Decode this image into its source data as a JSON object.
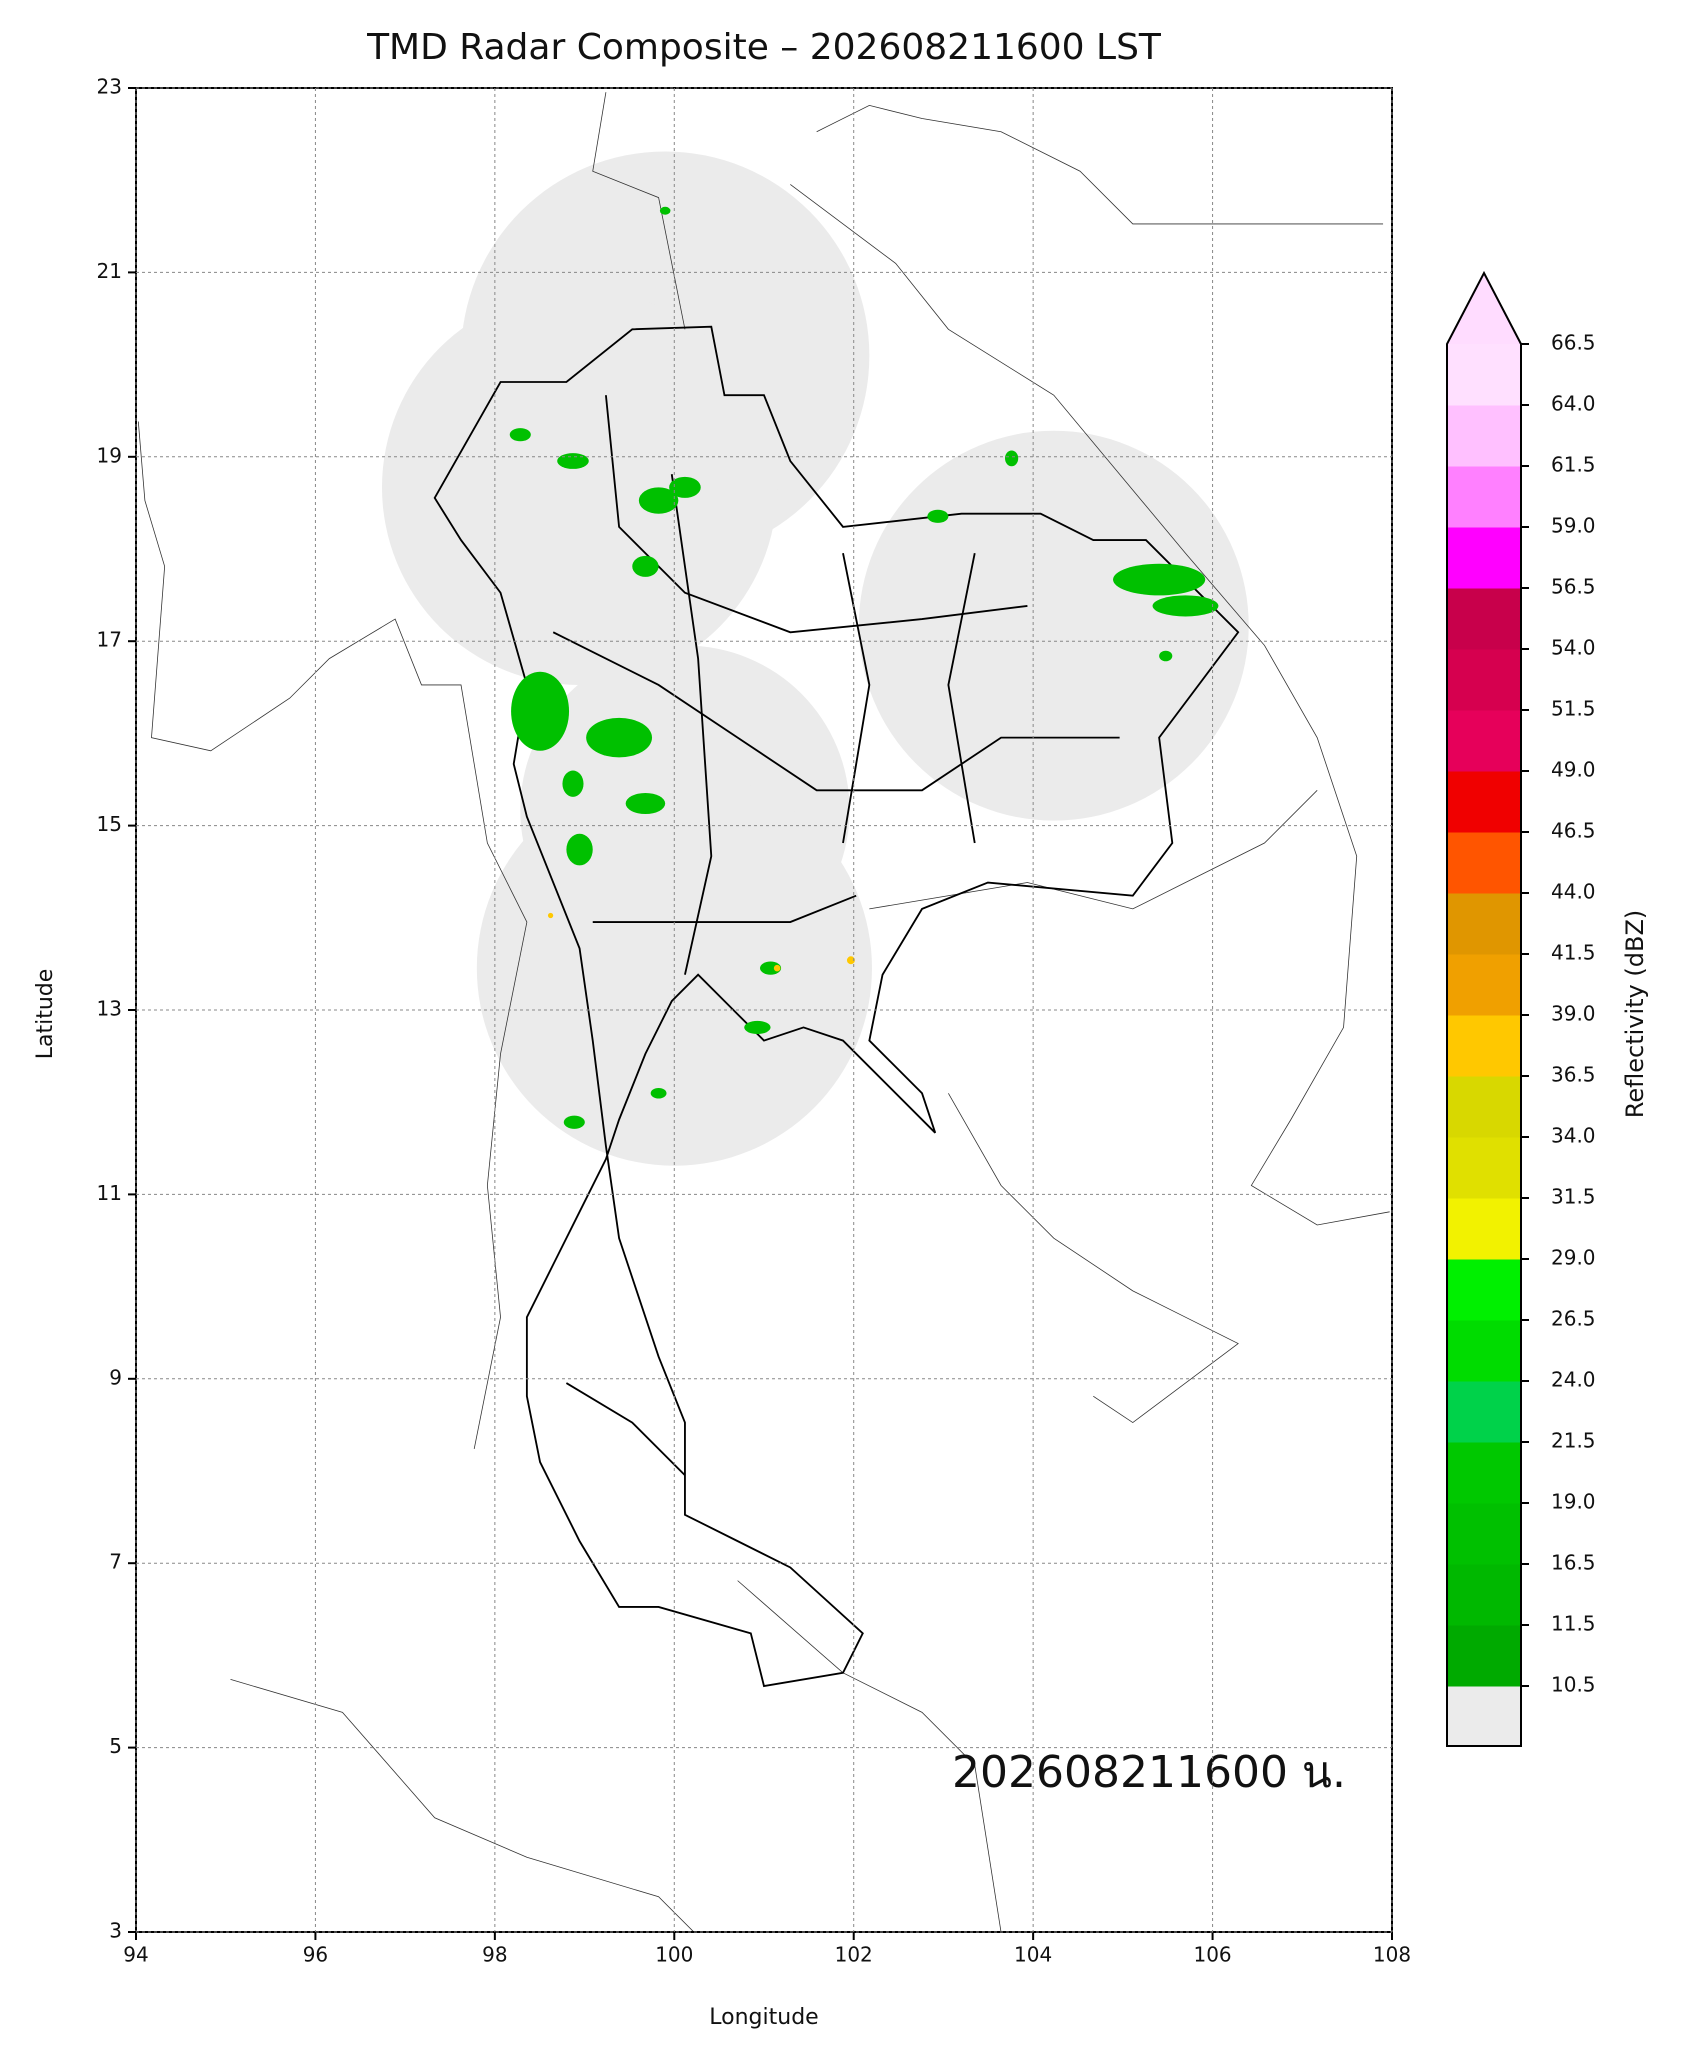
{
  "chart_data": {
    "type": "radar-map",
    "title": "TMD Radar Composite – 202608211600 LST",
    "annotation": "202608211600 น.",
    "x_label": "Longitude",
    "y_label": "Latitude",
    "xlim": [
      94,
      108
    ],
    "xticks": [
      94,
      96,
      98,
      100,
      102,
      104,
      106,
      108
    ],
    "ylim": [
      3,
      23
    ],
    "yticks": [
      3,
      5,
      7,
      9,
      11,
      13,
      15,
      17,
      19,
      21,
      23
    ],
    "grid": true,
    "colorbar": {
      "label": "Reflectivity (dBZ)",
      "ticks": [
        10.5,
        11.5,
        16.5,
        {
          "value": 19,
          "label": "19.0"
        },
        21.5,
        {
          "value": 24,
          "label": "24.0"
        },
        26.5,
        {
          "value": 29,
          "label": "29.0"
        },
        31.5,
        {
          "value": 34,
          "label": "34.0"
        },
        36.5,
        {
          "value": 39,
          "label": "39.0"
        },
        41.5,
        {
          "value": 44,
          "label": "44.0"
        },
        46.5,
        {
          "value": 49,
          "label": "49.0"
        },
        51.5,
        {
          "value": 54,
          "label": "54.0"
        },
        56.5,
        {
          "value": 59,
          "label": "59.0"
        },
        61.5,
        {
          "value": 64,
          "label": "64.0"
        },
        66.5
      ],
      "colors": [
        "#00aa00",
        "#00b800",
        "#00c000",
        "#00c800",
        "#00d24a",
        "#00dc00",
        "#00f000",
        "#f2f200",
        "#e0e000",
        "#d8d800",
        "#ffc800",
        "#f0a000",
        "#e09600",
        "#ff5500",
        "#f00000",
        "#e6005a",
        "#d6004f",
        "#c8004b",
        "#ff00ff",
        "#ff80ff",
        "#ffc0ff",
        "#ffe0ff"
      ],
      "under_color": "#ebebeb",
      "over_color": "#ffdcff"
    }
  }
}
